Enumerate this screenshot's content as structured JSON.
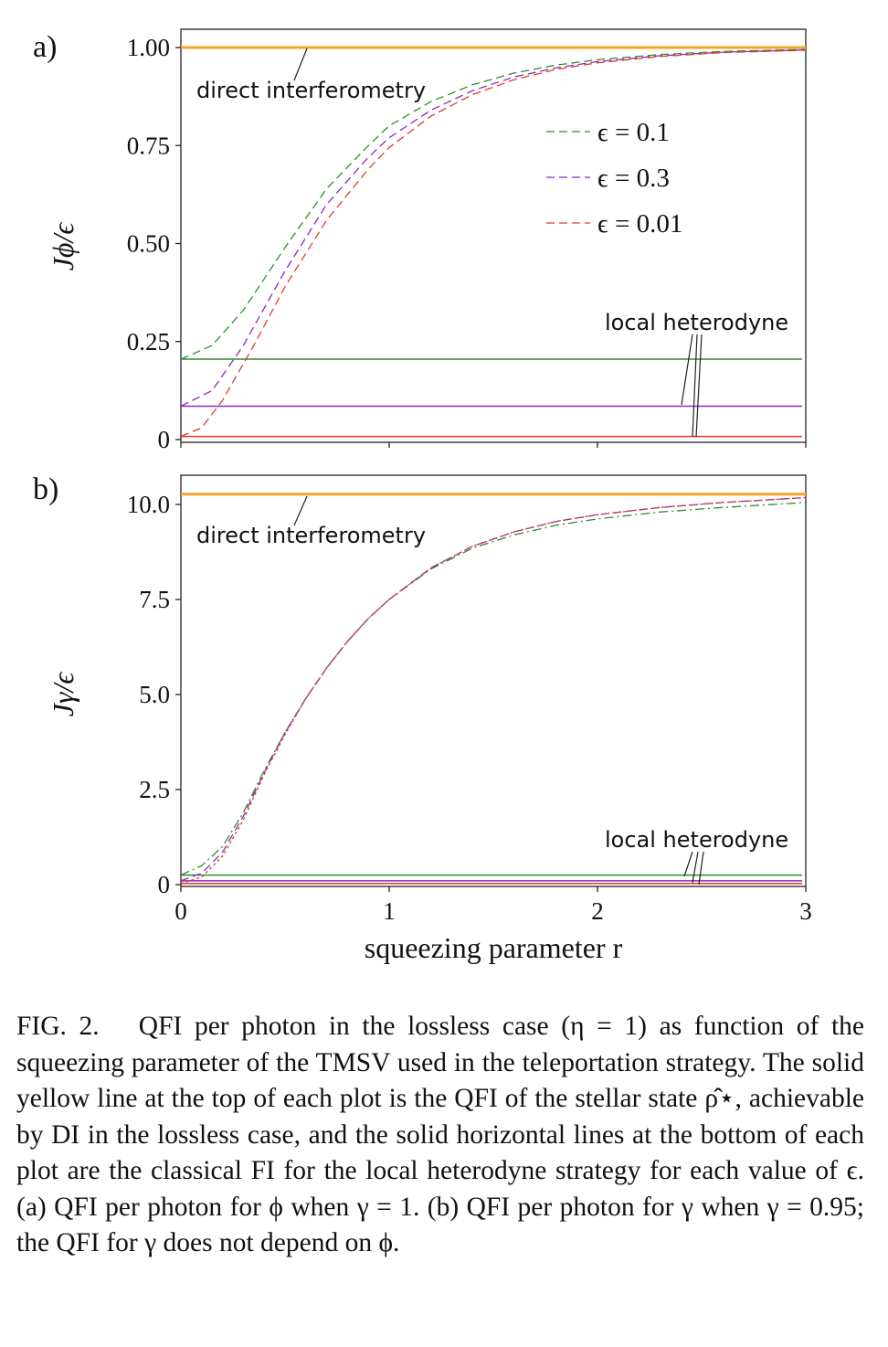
{
  "figure": {
    "caption": "FIG. 2.  QFI per photon in the lossless case (η = 1) as function of the squeezing parameter of the TMSV used in the teleportation strategy. The solid yellow line at the top of each plot is the QFI of the stellar state ρ̂⋆, achievable by DI in the lossless case, and the solid horizontal lines at the bottom of each plot are the classical FI for the local heterodyne strategy for each value of ϵ. (a) QFI per photon for ϕ when γ = 1. (b) QFI per photon for γ when γ = 0.95; the QFI for γ does not depend on ϕ."
  },
  "chart_data": [
    {
      "type": "line",
      "panel_label": "a)",
      "ylabel": "Jϕ/ϵ",
      "xlabel": "",
      "xlim": [
        0,
        3
      ],
      "ylim": [
        0,
        1.03
      ],
      "x_ticks": [
        0,
        1,
        2,
        3
      ],
      "x_tick_labels": [
        "",
        "",
        "",
        ""
      ],
      "y_ticks": [
        0,
        0.25,
        0.5,
        0.75,
        1.0
      ],
      "y_tick_labels": [
        "0",
        "0.25",
        "0.50",
        "0.75",
        "1.00"
      ],
      "grid": false,
      "legend_position": "top-right",
      "colors": {
        "eps_0.1": "#2e8b2e",
        "eps_0.3": "#8a2bbf",
        "eps_0.01": "#e03c2c",
        "di": "#f4a428"
      },
      "series": [
        {
          "name": "ϵ = 0.1",
          "style": "dashed",
          "color": "#2e8b2e",
          "x": [
            0,
            0.15,
            0.3,
            0.5,
            0.7,
            0.9,
            1.0,
            1.2,
            1.4,
            1.6,
            1.8,
            2.0,
            2.3,
            2.6,
            3.0
          ],
          "y": [
            0.205,
            0.24,
            0.33,
            0.49,
            0.64,
            0.75,
            0.8,
            0.862,
            0.905,
            0.935,
            0.955,
            0.969,
            0.982,
            0.99,
            0.995
          ]
        },
        {
          "name": "ϵ = 0.3",
          "style": "dashed",
          "color": "#8a2bbf",
          "x": [
            0,
            0.15,
            0.3,
            0.5,
            0.7,
            0.9,
            1.0,
            1.2,
            1.4,
            1.6,
            1.8,
            2.0,
            2.3,
            2.6,
            3.0
          ],
          "y": [
            0.085,
            0.125,
            0.24,
            0.43,
            0.6,
            0.72,
            0.77,
            0.84,
            0.89,
            0.925,
            0.948,
            0.964,
            0.979,
            0.988,
            0.994
          ]
        },
        {
          "name": "ϵ = 0.01",
          "style": "dashed",
          "color": "#e03c2c",
          "x": [
            0,
            0.1,
            0.2,
            0.35,
            0.5,
            0.7,
            0.9,
            1.0,
            1.2,
            1.4,
            1.6,
            1.8,
            2.0,
            2.3,
            2.6,
            3.0
          ],
          "y": [
            0.008,
            0.03,
            0.1,
            0.24,
            0.39,
            0.56,
            0.69,
            0.745,
            0.825,
            0.88,
            0.918,
            0.944,
            0.961,
            0.977,
            0.987,
            0.993
          ]
        }
      ],
      "horizontal_lines": [
        {
          "label": "direct interferometry",
          "y": 1.0,
          "color": "#f4a428"
        },
        {
          "label": "local heterodyne",
          "y": 0.205,
          "color": "#2e8b2e"
        },
        {
          "label": "local heterodyne",
          "y": 0.085,
          "color": "#8a2bbf"
        },
        {
          "label": "local heterodyne",
          "y": 0.008,
          "color": "#e03c2c"
        }
      ],
      "annotations": {
        "direct": "direct interferometry",
        "local": "local heterodyne"
      }
    },
    {
      "type": "line",
      "panel_label": "b)",
      "ylabel": "Jγ/ϵ",
      "xlabel": "squeezing parameter r",
      "xlim": [
        0,
        3
      ],
      "ylim": [
        0,
        10.8
      ],
      "x_ticks": [
        0,
        1,
        2,
        3
      ],
      "x_tick_labels": [
        "0",
        "1",
        "2",
        "3"
      ],
      "y_ticks": [
        0,
        2.5,
        5.0,
        7.5,
        10.0
      ],
      "y_tick_labels": [
        "0",
        "2.5",
        "5.0",
        "7.5",
        "10.0"
      ],
      "grid": false,
      "colors": {
        "eps_0.1": "#2e8b2e",
        "eps_0.3": "#8a2bbf",
        "eps_0.01": "#e03c2c",
        "di": "#f4a428"
      },
      "series": [
        {
          "name": "",
          "style": "dashdot",
          "color": "#2e8b2e",
          "x": [
            0,
            0.1,
            0.2,
            0.3,
            0.4,
            0.5,
            0.6,
            0.7,
            0.8,
            0.9,
            1.0,
            1.2,
            1.4,
            1.6,
            1.8,
            2.0,
            2.3,
            2.6,
            3.0
          ],
          "y": [
            0.25,
            0.5,
            1.0,
            1.9,
            3.0,
            4.0,
            4.9,
            5.7,
            6.4,
            7.0,
            7.5,
            8.3,
            8.85,
            9.2,
            9.45,
            9.62,
            9.8,
            9.92,
            10.05
          ]
        },
        {
          "name": "",
          "style": "dashed",
          "color": "#8a2bbf",
          "x": [
            0,
            0.1,
            0.2,
            0.3,
            0.4,
            0.5,
            0.6,
            0.7,
            0.8,
            0.9,
            1.0,
            1.2,
            1.4,
            1.6,
            1.8,
            2.0,
            2.3,
            2.6,
            3.0
          ],
          "y": [
            0.1,
            0.3,
            0.85,
            1.8,
            2.95,
            4.0,
            4.9,
            5.7,
            6.4,
            7.0,
            7.5,
            8.33,
            8.9,
            9.28,
            9.55,
            9.73,
            9.92,
            10.05,
            10.18
          ]
        },
        {
          "name": "",
          "style": "dotted",
          "color": "#e03c2c",
          "x": [
            0,
            0.1,
            0.2,
            0.3,
            0.4,
            0.5,
            0.6,
            0.7,
            0.8,
            0.9,
            1.0,
            1.2,
            1.4,
            1.6,
            1.8,
            2.0,
            2.3,
            2.6,
            3.0
          ],
          "y": [
            0.03,
            0.2,
            0.75,
            1.7,
            2.9,
            3.95,
            4.9,
            5.7,
            6.4,
            7.0,
            7.5,
            8.33,
            8.9,
            9.28,
            9.55,
            9.73,
            9.92,
            10.05,
            10.18
          ]
        }
      ],
      "horizontal_lines": [
        {
          "label": "direct interferometry",
          "y": 10.27,
          "color": "#f4a428"
        },
        {
          "label": "local heterodyne",
          "y": 0.25,
          "color": "#2e8b2e"
        },
        {
          "label": "local heterodyne",
          "y": 0.1,
          "color": "#8a2bbf"
        },
        {
          "label": "local heterodyne",
          "y": 0.03,
          "color": "#e03c2c"
        }
      ],
      "annotations": {
        "direct": "direct interferometry",
        "local": "local heterodyne"
      }
    }
  ]
}
